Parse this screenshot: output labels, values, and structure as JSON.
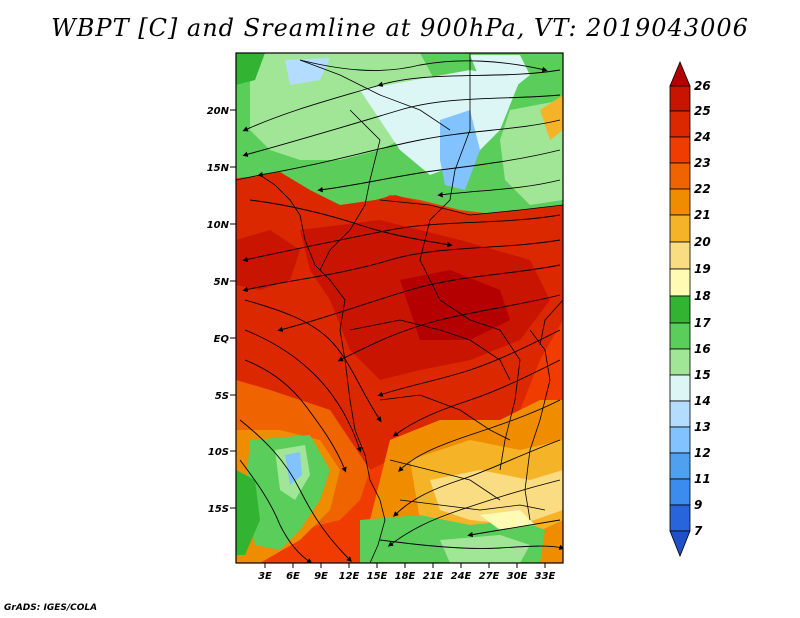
{
  "title": "WBPT [C] and Sreamline at 900hPa, VT: 2019043006",
  "footer": "GrADS: IGES/COLA",
  "map": {
    "lat_labels": [
      "20N",
      "15N",
      "10N",
      "5N",
      "EQ",
      "5S",
      "10S",
      "15S"
    ],
    "lon_labels": [
      "3E",
      "6E",
      "9E",
      "12E",
      "15E",
      "18E",
      "21E",
      "24E",
      "27E",
      "30E",
      "33E"
    ]
  },
  "colorbar": {
    "levels": [
      "26",
      "25",
      "24",
      "23",
      "22",
      "21",
      "20",
      "19",
      "18",
      "17",
      "16",
      "15",
      "14",
      "13",
      "12",
      "11",
      "9",
      "7"
    ],
    "colors": {
      "ge26": "#b40000",
      "25-26": "#c81400",
      "24-25": "#dc2800",
      "23-24": "#f03c00",
      "22-23": "#f06400",
      "21-22": "#f08c00",
      "20-21": "#f5b428",
      "19-20": "#fadc82",
      "18-19": "#fffab4",
      "17-18": "#32b432",
      "16-17": "#5acd5a",
      "15-16": "#a0e696",
      "14-15": "#dcf5f5",
      "13-14": "#b4dcff",
      "12-13": "#82c3ff",
      "11-12": "#50a0f0",
      "9-11": "#3c8cf0",
      "7-9": "#2864dc",
      "lt7": "#1e50c8"
    }
  }
}
